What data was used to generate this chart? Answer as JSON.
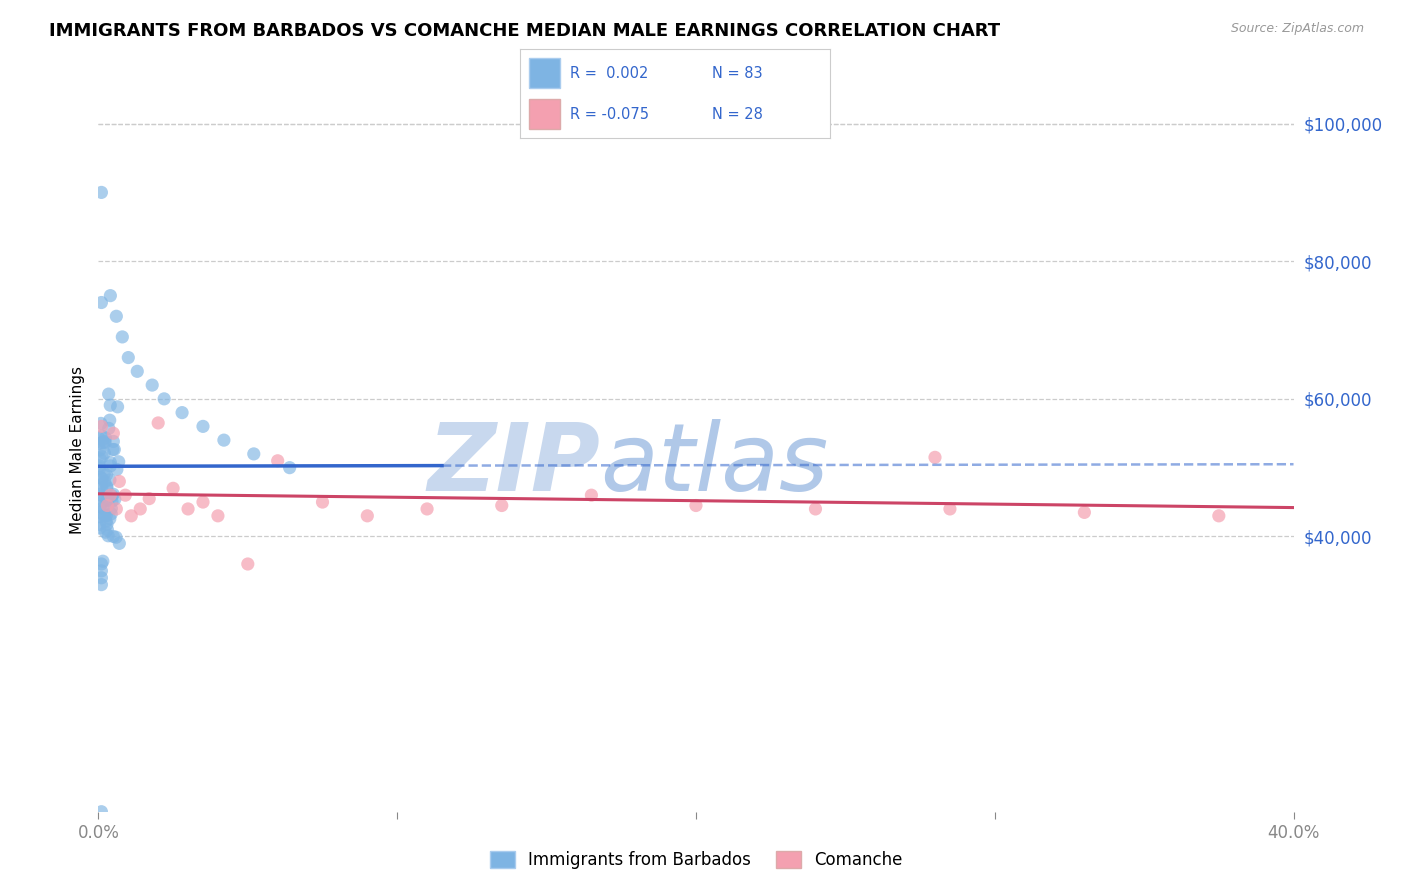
{
  "title": "IMMIGRANTS FROM BARBADOS VS COMANCHE MEDIAN MALE EARNINGS CORRELATION CHART",
  "source": "Source: ZipAtlas.com",
  "ylabel": "Median Male Earnings",
  "legend_blue_label": "Immigrants from Barbados",
  "legend_pink_label": "Comanche",
  "right_ytick_labels": [
    "$40,000",
    "$60,000",
    "$80,000",
    "$100,000"
  ],
  "right_ytick_values": [
    40000,
    60000,
    80000,
    100000
  ],
  "xlim": [
    0.0,
    0.4
  ],
  "ylim": [
    0,
    105000
  ],
  "background_color": "#ffffff",
  "grid_color": "#cccccc",
  "blue_color": "#7EB4E3",
  "blue_line_color": "#3366CC",
  "pink_color": "#F4A0B0",
  "pink_line_color": "#CC4466",
  "watermark_zip": "ZIP",
  "watermark_atlas": "atlas",
  "watermark_color_zip": "#c8d8ee",
  "watermark_color_atlas": "#b0c8e8"
}
